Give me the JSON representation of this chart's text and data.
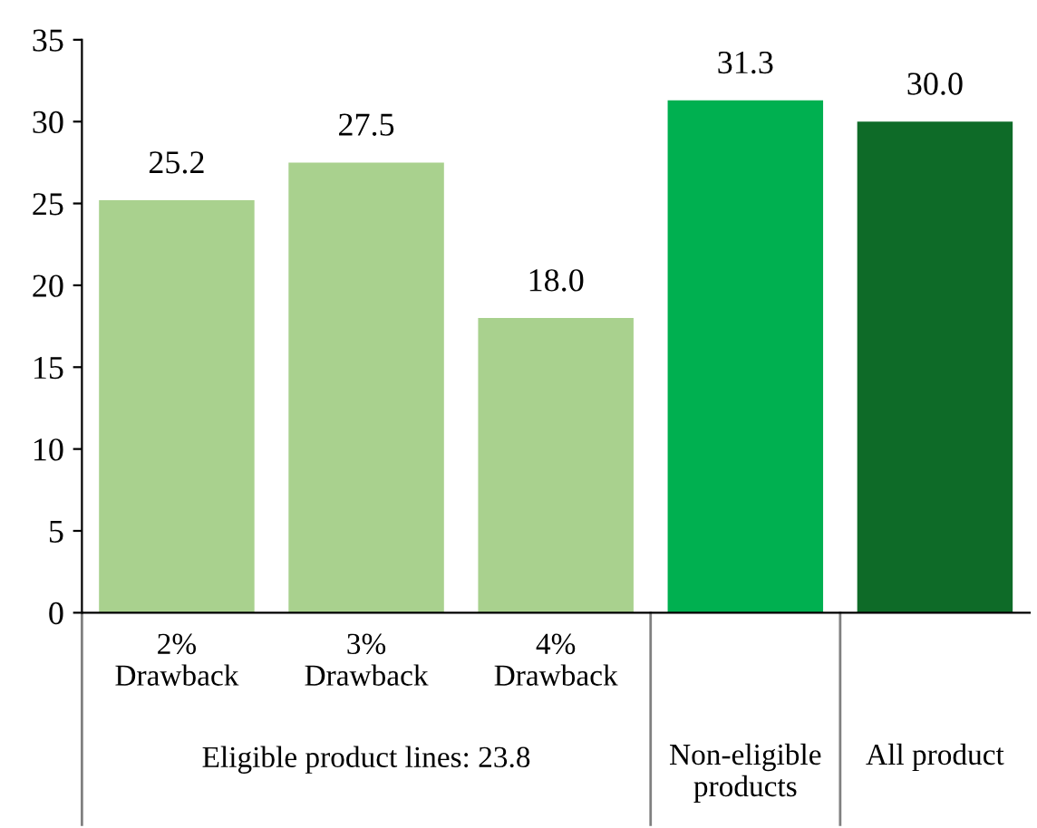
{
  "chart_data": {
    "type": "bar",
    "categories": [
      "2%\nDrawback",
      "3%\nDrawback",
      "4%\nDrawback",
      "Non-eligible\nproducts",
      "All product"
    ],
    "values": [
      25.2,
      27.5,
      18.0,
      31.3,
      30.0
    ],
    "value_labels": [
      "25.2",
      "27.5",
      "18.0",
      "31.3",
      "30.0"
    ],
    "colors": [
      "#a9d18e",
      "#a9d18e",
      "#a9d18e",
      "#00b050",
      "#0e6b28"
    ],
    "ylim": [
      0,
      35
    ],
    "yticks": [
      0,
      5,
      10,
      15,
      20,
      25,
      30,
      35
    ],
    "annotations": [
      "Eligible product lines: 23.8"
    ],
    "grid": false,
    "legend": false
  }
}
